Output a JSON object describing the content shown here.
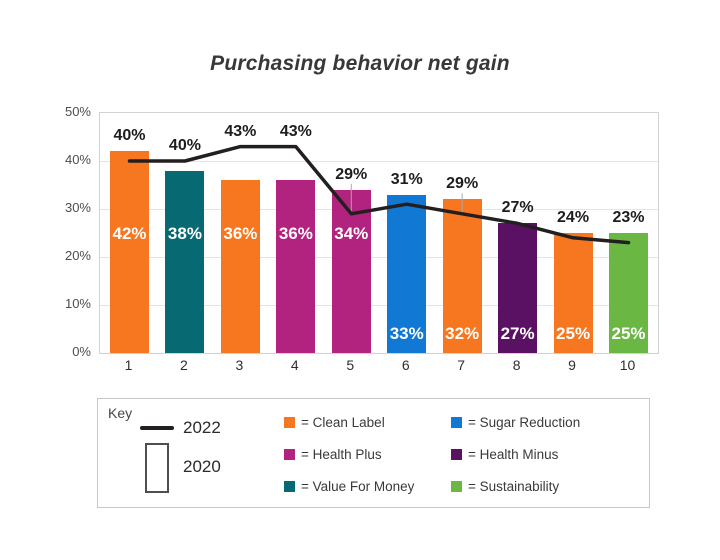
{
  "title": "Purchasing behavior net gain",
  "chart_data": {
    "type": "bar",
    "title": "Purchasing behavior net gain",
    "categories": [
      "1",
      "2",
      "3",
      "4",
      "5",
      "6",
      "7",
      "8",
      "9",
      "10"
    ],
    "series": [
      {
        "name": "2020",
        "type": "bar",
        "values": [
          42,
          38,
          36,
          36,
          34,
          33,
          32,
          27,
          25,
          25
        ],
        "data_labels": [
          "42%",
          "38%",
          "36%",
          "36%",
          "34%",
          "33%",
          "32%",
          "27%",
          "25%",
          "25%"
        ],
        "label_position": [
          "mid",
          "mid",
          "mid",
          "mid",
          "mid",
          "low",
          "low",
          "low",
          "low",
          "low"
        ],
        "bar_categories": [
          "Clean Label",
          "Value For Money",
          "Clean Label",
          "Health Plus",
          "Health Plus",
          "Sugar Reduction",
          "Clean Label",
          "Health Minus",
          "Clean Label",
          "Sustainability"
        ]
      },
      {
        "name": "2022",
        "type": "line",
        "values": [
          40,
          40,
          43,
          43,
          29,
          31,
          29,
          27,
          24,
          23
        ],
        "data_labels": [
          "40%",
          "40%",
          "43%",
          "43%",
          "29%",
          "31%",
          "29%",
          "27%",
          "24%",
          "23%"
        ],
        "color": "#231f20"
      }
    ],
    "ylim": [
      0,
      50
    ],
    "ytick_labels": [
      "0%",
      "10%",
      "20%",
      "30%",
      "40%",
      "50%"
    ],
    "grid": true,
    "legend_position": "bottom",
    "palette": {
      "Clean Label": "#F6771F",
      "Sugar Reduction": "#1178D4",
      "Health Plus": "#B22380",
      "Health Minus": "#5B1163",
      "Value For Money": "#076A72",
      "Sustainability": "#6AB744"
    }
  },
  "legend": {
    "title": "Key",
    "line_entry_label": "2022",
    "bar_entry_label": "2020",
    "columns": [
      [
        {
          "label": "= Clean Label",
          "category": "Clean Label"
        },
        {
          "label": "= Health Plus",
          "category": "Health Plus"
        },
        {
          "label": "= Value For Money",
          "category": "Value For Money"
        }
      ],
      [
        {
          "label": "= Sugar Reduction",
          "category": "Sugar Reduction"
        },
        {
          "label": "= Health Minus",
          "category": "Health Minus"
        },
        {
          "label": "= Sustainability",
          "category": "Sustainability"
        }
      ]
    ]
  }
}
